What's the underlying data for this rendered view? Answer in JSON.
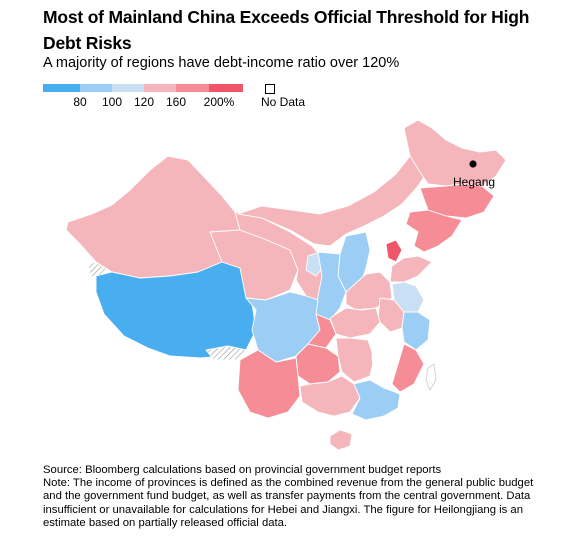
{
  "header": {
    "title": "Most of Mainland China Exceeds Official Threshold for High Debt Risks",
    "subtitle": "A majority of regions have debt-income ratio over 120%"
  },
  "legend": {
    "bins": [
      {
        "color": "#49aef0"
      },
      {
        "color": "#9ccdf4"
      },
      {
        "color": "#c9dff4"
      },
      {
        "color": "#f5b6bb"
      },
      {
        "color": "#f58c96"
      },
      {
        "color": "#f0566a"
      }
    ],
    "ticks": [
      "80",
      "100",
      "120",
      "160",
      "200%"
    ],
    "no_data_label": "No Data"
  },
  "map": {
    "city_label": "Hegang",
    "colors": {
      "lt80": "#49aef0",
      "r80_100": "#9ccdf4",
      "r100_120": "#c9dff4",
      "r120_160": "#f5b6bb",
      "r160_200": "#f58c96",
      "gt200": "#f0566a",
      "no_data": "#ffffff"
    }
  },
  "footer": {
    "source": "Source: Bloomberg calculations based on provincial government budget reports",
    "note": "Note: The income of provinces is defined as the combined revenue from the general public budget and the government fund budget, as well as transfer payments from the central government. Data insufficient or unavailable for calculations for Hebei and Jiangxi. The figure for Heilongjiang is an estimate based on partially released official data."
  }
}
